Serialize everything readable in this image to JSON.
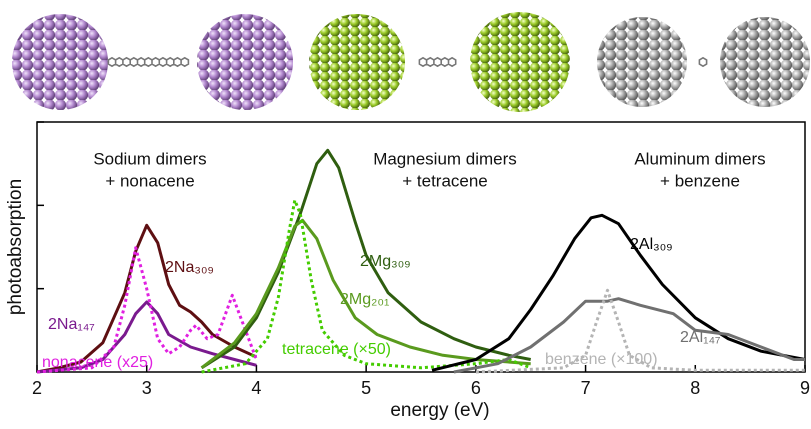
{
  "chart_data": {
    "type": "line",
    "xlabel": "energy (eV)",
    "ylabel": "photoabsorption",
    "xlim": [
      2,
      9
    ],
    "xticks": [
      2,
      3,
      4,
      5,
      6,
      7,
      8,
      9
    ],
    "ylim": [
      0,
      3
    ],
    "yticks": [
      0,
      1,
      2,
      3
    ],
    "annotations": [
      "Sodium dimers",
      "+ nonacene",
      "Magnesium dimers",
      "+ tetracene",
      "Aluminum dimers",
      "+ benzene"
    ],
    "series": [
      {
        "name": "2Na₃₀₉",
        "color": "#5e0f12",
        "dash": false,
        "x": [
          2.0,
          2.2,
          2.4,
          2.6,
          2.8,
          2.9,
          3.0,
          3.1,
          3.2,
          3.3,
          3.4,
          3.5,
          3.6,
          3.8,
          4.0
        ],
        "values": [
          0.0,
          0.05,
          0.12,
          0.35,
          0.95,
          1.45,
          1.76,
          1.55,
          1.05,
          0.8,
          0.72,
          0.6,
          0.45,
          0.3,
          0.18
        ]
      },
      {
        "name": "2Na₁₄₇",
        "color": "#7a1a8e",
        "dash": false,
        "x": [
          2.0,
          2.4,
          2.6,
          2.8,
          2.9,
          3.0,
          3.1,
          3.2,
          3.4,
          3.6,
          3.8,
          4.0
        ],
        "values": [
          0.0,
          0.05,
          0.15,
          0.45,
          0.7,
          0.84,
          0.7,
          0.45,
          0.3,
          0.22,
          0.15,
          0.08
        ]
      },
      {
        "name": "nonacene (x25)",
        "color": "#e020e0",
        "dash": true,
        "x": [
          2.0,
          2.5,
          2.7,
          2.8,
          2.9,
          3.0,
          3.1,
          3.2,
          3.3,
          3.4,
          3.45,
          3.55,
          3.65,
          3.78,
          3.9,
          4.0
        ],
        "values": [
          0.0,
          0.05,
          0.3,
          0.8,
          1.49,
          1.0,
          0.4,
          0.22,
          0.3,
          0.5,
          0.56,
          0.4,
          0.45,
          0.92,
          0.5,
          0.15
        ]
      },
      {
        "name": "2Mg₃₀₉",
        "color": "#2f5e10",
        "dash": false,
        "x": [
          3.5,
          3.8,
          4.0,
          4.2,
          4.4,
          4.55,
          4.65,
          4.75,
          4.9,
          5.0,
          5.2,
          5.5,
          5.8,
          6.0,
          6.3,
          6.5
        ],
        "values": [
          0.05,
          0.3,
          0.65,
          1.2,
          1.9,
          2.5,
          2.66,
          2.45,
          1.8,
          1.4,
          0.95,
          0.6,
          0.4,
          0.3,
          0.2,
          0.15
        ]
      },
      {
        "name": "2Mg₂₀₁",
        "color": "#5a9a1e",
        "dash": false,
        "x": [
          3.5,
          3.8,
          4.0,
          4.2,
          4.35,
          4.42,
          4.55,
          4.7,
          4.9,
          5.1,
          5.4,
          5.7,
          6.0,
          6.5
        ],
        "values": [
          0.05,
          0.35,
          0.7,
          1.25,
          1.75,
          1.82,
          1.6,
          1.1,
          0.65,
          0.45,
          0.3,
          0.2,
          0.15,
          0.1
        ]
      },
      {
        "name": "tetracene (×50)",
        "color": "#44cc00",
        "dash": true,
        "x": [
          3.5,
          3.9,
          4.1,
          4.2,
          4.3,
          4.35,
          4.4,
          4.5,
          4.6,
          4.8,
          5.0,
          5.5,
          6.0,
          6.3,
          6.5
        ],
        "values": [
          0.0,
          0.1,
          0.4,
          0.9,
          1.7,
          2.06,
          1.9,
          1.1,
          0.5,
          0.2,
          0.1,
          0.05,
          0.1,
          0.15,
          0.05
        ]
      },
      {
        "name": "2Al₃₀₉",
        "color": "#000000",
        "dash": false,
        "x": [
          5.6,
          6.0,
          6.3,
          6.5,
          6.7,
          6.9,
          7.05,
          7.15,
          7.3,
          7.5,
          7.7,
          8.0,
          8.3,
          8.6,
          9.0
        ],
        "values": [
          0.02,
          0.15,
          0.4,
          0.75,
          1.15,
          1.6,
          1.85,
          1.88,
          1.78,
          1.4,
          1.05,
          0.65,
          0.4,
          0.25,
          0.15
        ]
      },
      {
        "name": "2Al₁₄₇",
        "color": "#707070",
        "dash": false,
        "x": [
          5.8,
          6.2,
          6.5,
          6.8,
          7.0,
          7.2,
          7.3,
          7.5,
          7.8,
          8.0,
          8.3,
          8.6,
          8.9,
          9.0
        ],
        "values": [
          0.0,
          0.1,
          0.3,
          0.6,
          0.85,
          0.85,
          0.88,
          0.8,
          0.7,
          0.5,
          0.45,
          0.3,
          0.15,
          0.15
        ]
      },
      {
        "name": "benzene (×100)",
        "color": "#b4b4b4",
        "dash": true,
        "x": [
          6.0,
          6.8,
          7.0,
          7.1,
          7.2,
          7.3,
          7.4,
          7.6,
          8.0,
          9.0
        ],
        "values": [
          0.0,
          0.05,
          0.2,
          0.6,
          0.98,
          0.6,
          0.2,
          0.05,
          0.02,
          0.02
        ]
      }
    ]
  }
}
